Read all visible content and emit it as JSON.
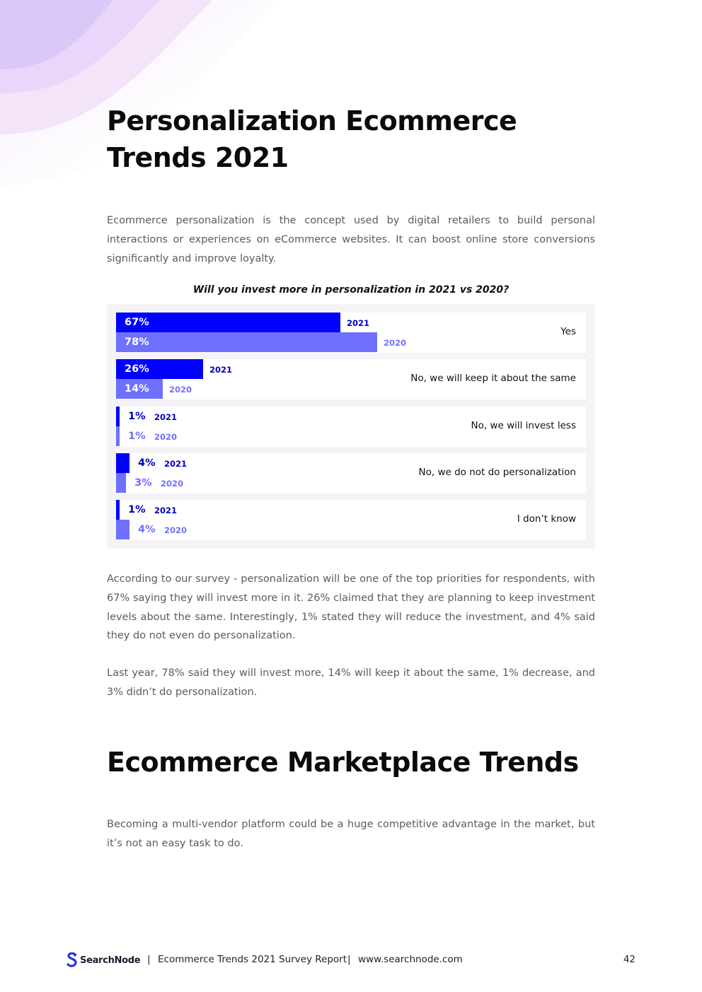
{
  "title": "Personalization Ecommerce Trends 2021",
  "intro": "Ecommerce personalization is the concept used by digital retailers to build personal interactions or experiences on eCommerce websites. It can boost online store conversions significantly and improve loyalty.",
  "colors": {
    "bar_2021": "#0000ff",
    "bar_2020": "#7070ff",
    "panel": "#f4f4f7"
  },
  "chart_data": {
    "type": "bar",
    "orientation": "horizontal",
    "title": "Will you invest more in personalization in 2021 vs 2020?",
    "categories": [
      "Yes",
      "No, we will keep it about the same",
      "No, we will invest less",
      "No, we do not do personalization",
      "I don’t know"
    ],
    "series": [
      {
        "name": "2021",
        "values": [
          67,
          26,
          1,
          4,
          1
        ],
        "labels": [
          "67%",
          "26%",
          "1%",
          "4%",
          "1%"
        ]
      },
      {
        "name": "2020",
        "values": [
          78,
          14,
          1,
          3,
          4
        ],
        "labels": [
          "78%",
          "14%",
          "1%",
          "3%",
          "4%"
        ]
      }
    ],
    "xlim": [
      0,
      100
    ],
    "grid": false
  },
  "summary_1": "According to our survey - personalization will be one of the top priorities for respondents, with 67% saying they will invest more in it. 26% claimed that they are planning to keep investment levels about the same. Interestingly, 1% stated they will reduce the investment, and 4% said they do not even do personalization.",
  "summary_2": "Last year, 78% said they will invest more, 14% will keep it about the same, 1% decrease, and 3% didn’t do personalization.",
  "section2_title": "Ecommerce Marketplace Trends",
  "section2_text": "Becoming a multi-vendor platform could be a huge competitive advantage in the market, but it’s not an easy task to do.",
  "footer": {
    "logo_text": "SearchNode",
    "separator": "|",
    "report": "Ecommerce Trends 2021 Survey Report",
    "url": "www.searchnode.com",
    "page_number": "42"
  }
}
